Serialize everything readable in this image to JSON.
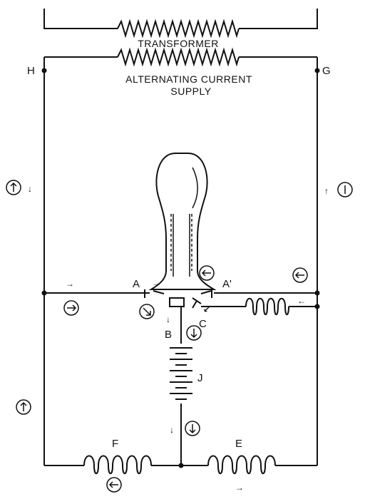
{
  "captions": {
    "transformer": "TRANSFORMER",
    "supply_line1": "ALTERNATING CURRENT",
    "supply_line2": "SUPPLY"
  },
  "labels": {
    "H": "H",
    "G": "G",
    "A": "A",
    "A_prime": "A'",
    "B": "B",
    "C": "C",
    "J": "J",
    "F": "F",
    "E": "E"
  },
  "glyphs": {
    "arrow_right": "→",
    "arrow_left": "←",
    "arrow_up": "↑",
    "arrow_down": "↓",
    "arrow_down_right": "↘",
    "arrow_down_left": "↙"
  }
}
